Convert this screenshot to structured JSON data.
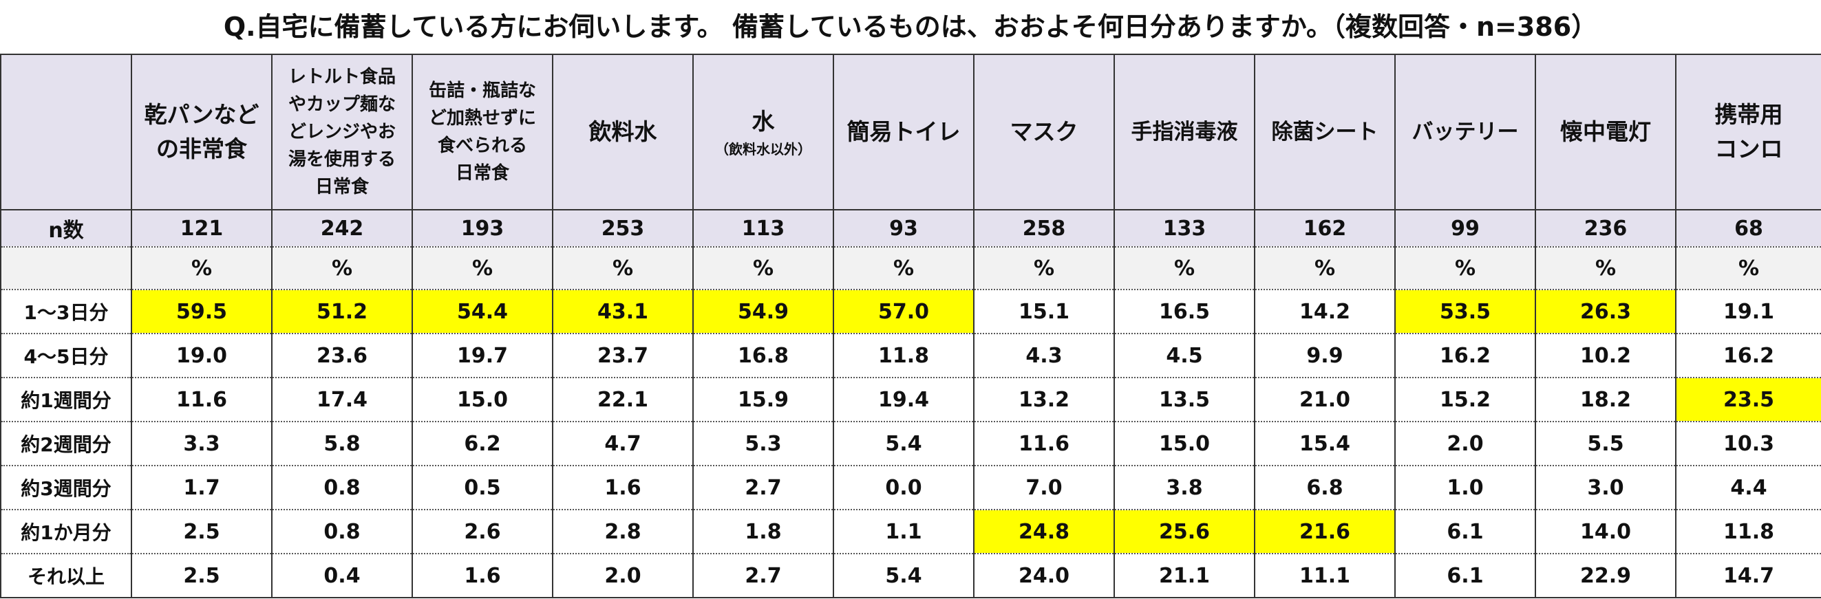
{
  "title": "Q.自宅に備蓄している方にお伺いします。 備蓄しているものは、おおよそ何日分ありますか。（複数回答・n=386）",
  "n_label": "n数",
  "pct_label": "%",
  "highlight_color": "#ffff00",
  "header_color": "#e4e1ee",
  "columns": [
    {
      "line1": "乾パンなど",
      "line2": "の非常食",
      "line3": "",
      "line4": "",
      "n": "121"
    },
    {
      "line1": "レトルト食品",
      "line2": "やカップ麺な",
      "line3": "どレンジやお",
      "line4": "湯を使用する",
      "line5": "日常食",
      "n": "242"
    },
    {
      "line1": "缶詰・瓶詰な",
      "line2": "ど加熱せずに",
      "line3": "食べられる",
      "line4": "日常食",
      "n": "193"
    },
    {
      "line1": "飲料水",
      "n": "253"
    },
    {
      "line1": "水",
      "sub": "（飲料水以外）",
      "n": "113"
    },
    {
      "line1": "簡易トイレ",
      "n": "93"
    },
    {
      "line1": "マスク",
      "n": "258"
    },
    {
      "line1": "手指消毒液",
      "n": "133"
    },
    {
      "line1": "除菌シート",
      "n": "162"
    },
    {
      "line1": "バッテリー",
      "n": "99"
    },
    {
      "line1": "懐中電灯",
      "n": "236"
    },
    {
      "line1": "携帯用",
      "line2": "コンロ",
      "n": "68"
    }
  ],
  "rows": [
    {
      "label": "1～3日分",
      "values": [
        "59.5",
        "51.2",
        "54.4",
        "43.1",
        "54.9",
        "57.0",
        "15.1",
        "16.5",
        "14.2",
        "53.5",
        "26.3",
        "19.1"
      ],
      "highlight": [
        true,
        true,
        true,
        true,
        true,
        true,
        false,
        false,
        false,
        true,
        true,
        false
      ]
    },
    {
      "label": "4～5日分",
      "values": [
        "19.0",
        "23.6",
        "19.7",
        "23.7",
        "16.8",
        "11.8",
        "4.3",
        "4.5",
        "9.9",
        "16.2",
        "10.2",
        "16.2"
      ],
      "highlight": [
        false,
        false,
        false,
        false,
        false,
        false,
        false,
        false,
        false,
        false,
        false,
        false
      ]
    },
    {
      "label": "約1週間分",
      "values": [
        "11.6",
        "17.4",
        "15.0",
        "22.1",
        "15.9",
        "19.4",
        "13.2",
        "13.5",
        "21.0",
        "15.2",
        "18.2",
        "23.5"
      ],
      "highlight": [
        false,
        false,
        false,
        false,
        false,
        false,
        false,
        false,
        false,
        false,
        false,
        true
      ]
    },
    {
      "label": "約2週間分",
      "values": [
        "3.3",
        "5.8",
        "6.2",
        "4.7",
        "5.3",
        "5.4",
        "11.6",
        "15.0",
        "15.4",
        "2.0",
        "5.5",
        "10.3"
      ],
      "highlight": [
        false,
        false,
        false,
        false,
        false,
        false,
        false,
        false,
        false,
        false,
        false,
        false
      ]
    },
    {
      "label": "約3週間分",
      "values": [
        "1.7",
        "0.8",
        "0.5",
        "1.6",
        "2.7",
        "0.0",
        "7.0",
        "3.8",
        "6.8",
        "1.0",
        "3.0",
        "4.4"
      ],
      "highlight": [
        false,
        false,
        false,
        false,
        false,
        false,
        false,
        false,
        false,
        false,
        false,
        false
      ]
    },
    {
      "label": "約1か月分",
      "values": [
        "2.5",
        "0.8",
        "2.6",
        "2.8",
        "1.8",
        "1.1",
        "24.8",
        "25.6",
        "21.6",
        "6.1",
        "14.0",
        "11.8"
      ],
      "highlight": [
        false,
        false,
        false,
        false,
        false,
        false,
        true,
        true,
        true,
        false,
        false,
        false
      ]
    },
    {
      "label": "それ以上",
      "values": [
        "2.5",
        "0.4",
        "1.6",
        "2.0",
        "2.7",
        "5.4",
        "24.0",
        "21.1",
        "11.1",
        "6.1",
        "22.9",
        "14.7"
      ],
      "highlight": [
        false,
        false,
        false,
        false,
        false,
        false,
        false,
        false,
        false,
        false,
        false,
        false
      ]
    }
  ]
}
